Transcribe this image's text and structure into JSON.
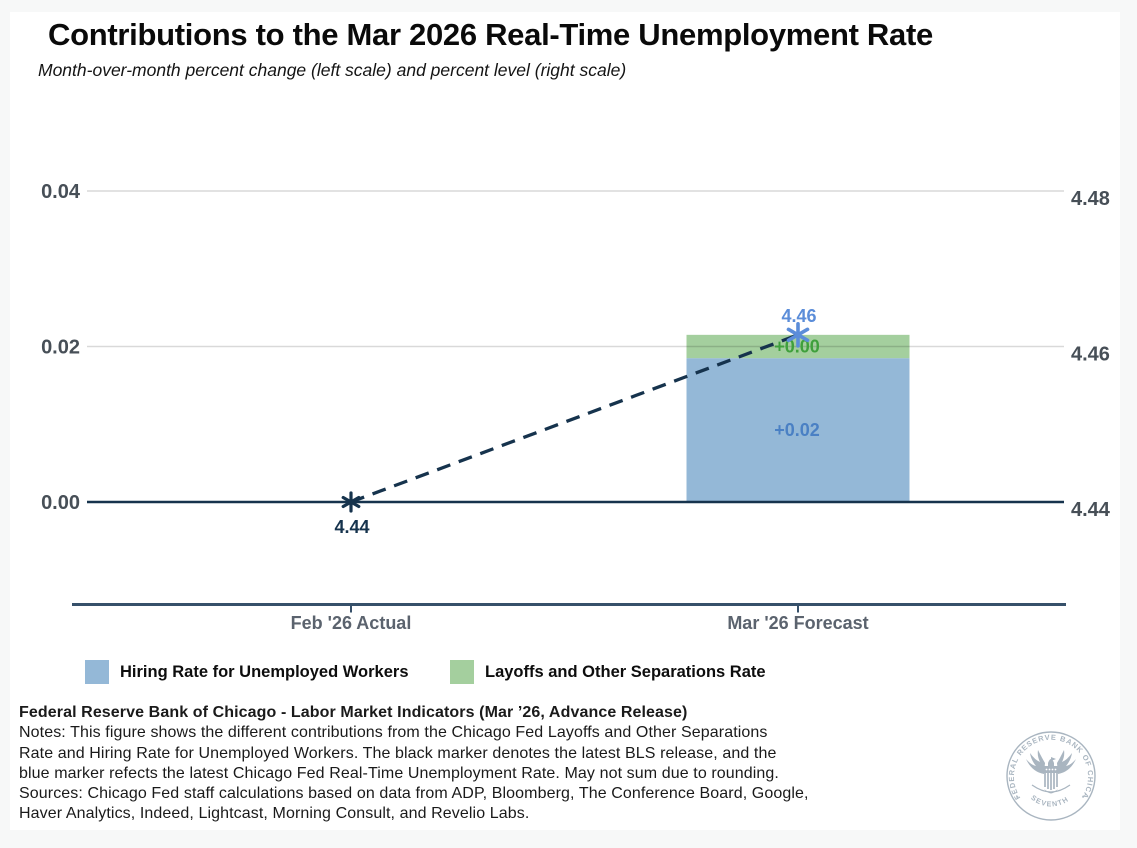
{
  "header": {
    "title": "Contributions to the Mar 2026 Real-Time Unemployment Rate",
    "subtitle": "Month-over-month percent change (left scale) and percent level (right scale)"
  },
  "chart_data": {
    "type": "bar",
    "title": "Contributions to the Mar 2026 Real-Time Unemployment Rate",
    "subtitle": "Month-over-month percent change (left scale) and percent level (right scale)",
    "categories": [
      "Feb '26 Actual",
      "Mar '26 Forecast"
    ],
    "grid": "horizontal",
    "legend_position": "bottom",
    "left_axis": {
      "tick_labels": [
        "0.00",
        "0.02",
        "0.04"
      ],
      "tick_values": [
        0,
        0.02,
        0.04
      ],
      "range": [
        -0.0132,
        0.0532
      ]
    },
    "right_axis": {
      "tick_labels": [
        "4.44",
        "4.46",
        "4.48"
      ],
      "tick_values": [
        4.44,
        4.46,
        4.48
      ],
      "base": 4.44
    },
    "series": [
      {
        "name": "Hiring Rate for Unemployed Workers",
        "color": "#94b8d7",
        "label_color": "#4a80c4",
        "values": [
          0,
          0.0185
        ],
        "bar_label": "+0.02"
      },
      {
        "name": "Layoffs and Other Separations Rate",
        "color": "#a4cf9e",
        "label_color": "#3fa03c",
        "values": [
          0,
          0.003
        ],
        "bar_label": "+0.00"
      }
    ],
    "markers": [
      {
        "category_index": 0,
        "value": 4.44,
        "label": "4.44",
        "color": "#16334d",
        "label_side": "below",
        "size": 9
      },
      {
        "category_index": 1,
        "value": 4.4615,
        "label": "4.46",
        "color": "#5b8dd9",
        "label_side": "above",
        "size": 11
      }
    ],
    "connector": {
      "style": "dashed",
      "color": "#16334d"
    },
    "zero_line_color": "#16334d",
    "axis_color": "#36506a",
    "gridline_color": "#d9d9d9",
    "tick_label_color": "#474f57",
    "category_label_color": "#5b636e"
  },
  "legend": {
    "items": [
      {
        "label": "Hiring Rate for Unemployed Workers",
        "color": "#94b8d7"
      },
      {
        "label": "Layoffs and Other Separations Rate",
        "color": "#a4cf9e"
      }
    ]
  },
  "footer": {
    "source_line": "Federal Reserve Bank of Chicago - Labor Market Indicators (Mar ’26, Advance Release)",
    "lines": [
      "Notes: This figure shows the different contributions from the Chicago Fed Layoffs and Other Separations",
      "Rate and Hiring Rate for Unemployed Workers. The black marker denotes the latest BLS release, and the",
      "blue marker refects the latest Chicago Fed Real-Time Unemployment Rate. May not sum due to rounding.",
      "Sources: Chicago Fed staff calculations based on data from ADP, Bloomberg, The Conference Board, Google,",
      "Haver Analytics, Indeed, Lightcast, Morning Consult, and Revelio Labs."
    ]
  },
  "logo": {
    "ring_text_top": "FEDERAL RESERVE BANK OF CHICAGO",
    "ring_text_bottom": "SEVENTH DISTRICT",
    "color": "#a9b5c0"
  }
}
